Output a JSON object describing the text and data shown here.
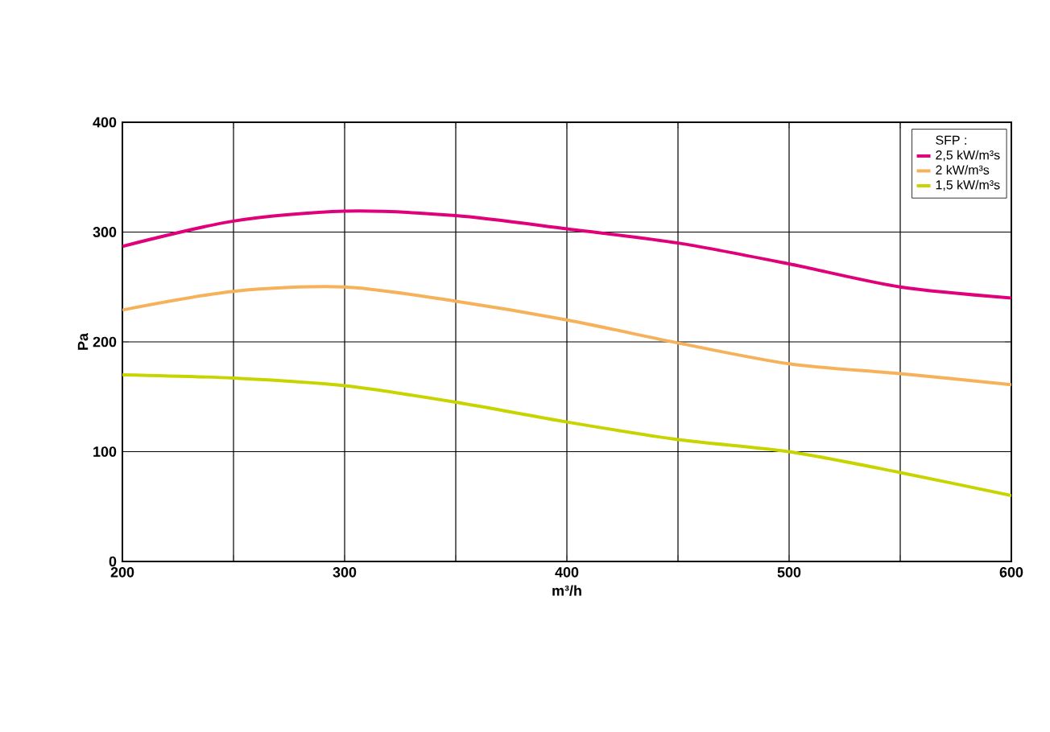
{
  "chart_data": {
    "type": "line",
    "xlabel": "m³/h",
    "ylabel": "Pa",
    "legend_title": "SFP :",
    "x": [
      200,
      250,
      300,
      350,
      400,
      450,
      500,
      550,
      600
    ],
    "series": [
      {
        "name": "2,5 kW/m³s",
        "color": "#e0007a",
        "values": [
          287,
          310,
          319,
          315,
          303,
          290,
          271,
          250,
          240
        ]
      },
      {
        "name": "2 kW/m³s",
        "color": "#f5b25a",
        "values": [
          229,
          246,
          250,
          237,
          220,
          199,
          180,
          171,
          161
        ]
      },
      {
        "name": "1,5 kW/m³s",
        "color": "#c8d400",
        "values": [
          170,
          167,
          160,
          145,
          127,
          111,
          100,
          81,
          60
        ]
      }
    ],
    "xlim": [
      200,
      600
    ],
    "ylim": [
      0,
      400
    ],
    "xticks": [
      200,
      {
        "value": 250,
        "label": null
      },
      300,
      {
        "value": 350,
        "label": null
      },
      400,
      {
        "value": 450,
        "label": null
      },
      500,
      {
        "value": 550,
        "label": null
      },
      600
    ],
    "yticks": [
      0,
      100,
      200,
      300,
      400
    ],
    "grid": true,
    "legend": "top right",
    "marker": "none",
    "line_style": "solid"
  }
}
